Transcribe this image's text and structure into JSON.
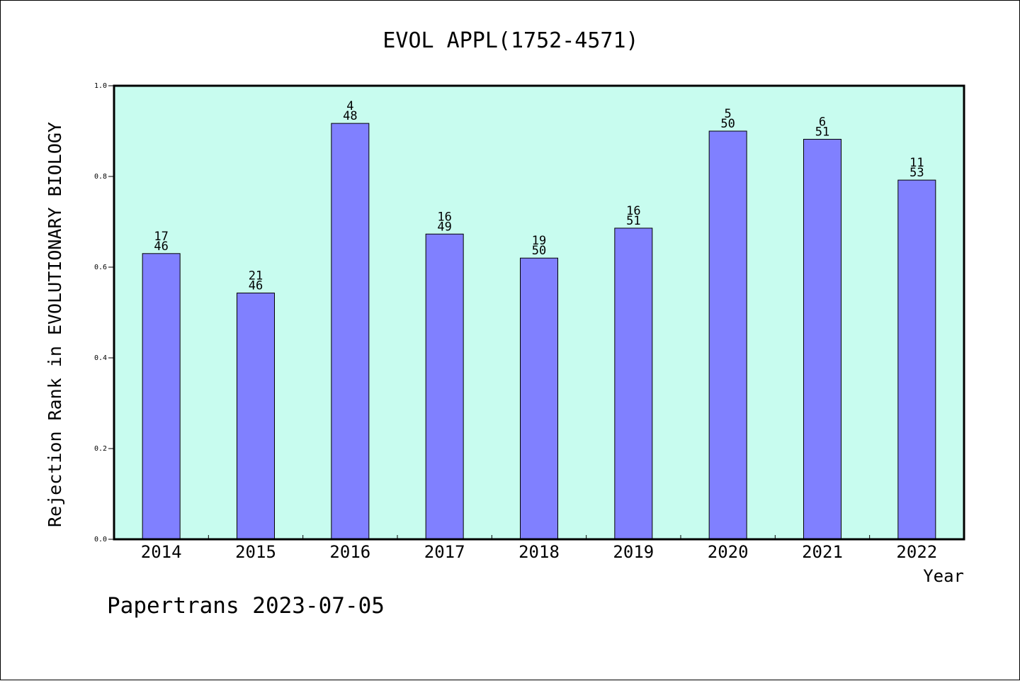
{
  "chart_data": {
    "type": "bar",
    "title": "EVOL APPL(1752-4571)",
    "xlabel": "Year",
    "ylabel": "Rejection Rank in EVOLUTIONARY BIOLOGY",
    "ylim": [
      0,
      1.0
    ],
    "y_ticks": [
      "0.0",
      "0.2",
      "0.4",
      "0.6",
      "0.8",
      "1.0"
    ],
    "categories": [
      "2014",
      "2015",
      "2016",
      "2017",
      "2018",
      "2019",
      "2020",
      "2021",
      "2022"
    ],
    "values": [
      0.63,
      0.543,
      0.917,
      0.673,
      0.62,
      0.686,
      0.9,
      0.882,
      0.792
    ],
    "rank": [
      "17",
      "21",
      "4",
      "16",
      "19",
      "16",
      "5",
      "6",
      "11"
    ],
    "total": [
      "46",
      "46",
      "48",
      "49",
      "50",
      "51",
      "50",
      "51",
      "53"
    ],
    "grid": false,
    "legend": "none",
    "colors": {
      "plot_background": "#c8fcef",
      "bar_fill": "#8080ff",
      "bar_stroke": "#000000",
      "axis": "#000000"
    }
  },
  "footer": {
    "text": "Papertrans 2023-07-05"
  }
}
